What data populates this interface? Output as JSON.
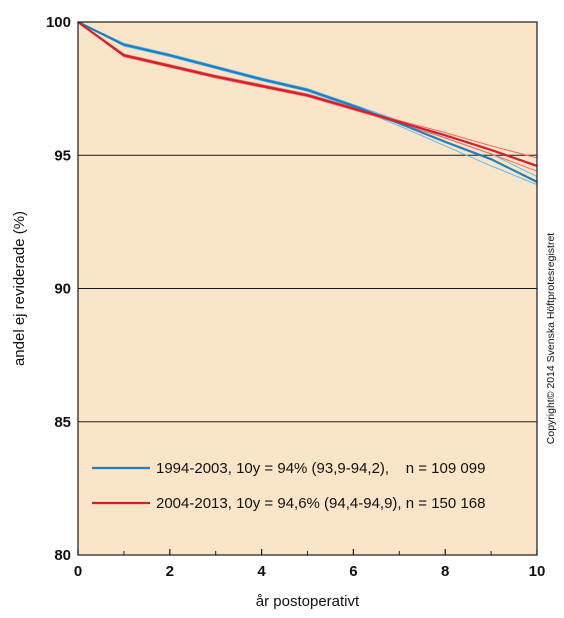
{
  "chart_data": {
    "type": "line",
    "title": "",
    "xlabel": "år postoperativt",
    "ylabel": "andel ej reviderade (%)",
    "xlim": [
      0,
      10
    ],
    "ylim": [
      80,
      100
    ],
    "x_ticks": [
      "0",
      "2",
      "4",
      "6",
      "8",
      "10"
    ],
    "y_ticks": [
      "100",
      "95",
      "90",
      "85",
      "80"
    ],
    "grid": "horizontal",
    "background_color": "#fbe5c8",
    "legend_position": "bottom-left",
    "series": [
      {
        "name": "1994-2003, 10y = 94% (93,9-94,2),    n = 109 099",
        "color": "#1f7fc0",
        "ci_color": "#5fb8e8",
        "x": [
          0,
          1,
          2,
          3,
          4,
          5,
          6,
          7,
          8,
          9,
          10
        ],
        "y": [
          100,
          99.15,
          98.75,
          98.3,
          97.85,
          97.45,
          96.85,
          96.2,
          95.5,
          94.85,
          94.0
        ],
        "ci_low": [
          100,
          99.1,
          98.7,
          98.25,
          97.8,
          97.4,
          96.8,
          96.1,
          95.35,
          94.6,
          93.9
        ],
        "ci_high": [
          100,
          99.2,
          98.8,
          98.35,
          97.9,
          97.5,
          96.9,
          96.3,
          95.65,
          95.05,
          94.2
        ]
      },
      {
        "name": "2004-2013, 10y = 94,6% (94,4-94,9), n = 150 168",
        "color": "#d81e28",
        "ci_color": "#ee6a6a",
        "x": [
          0,
          1,
          2,
          3,
          4,
          5,
          6,
          7,
          8,
          9,
          10
        ],
        "y": [
          100,
          98.75,
          98.35,
          97.95,
          97.6,
          97.25,
          96.75,
          96.25,
          95.75,
          95.2,
          94.6
        ],
        "ci_low": [
          100,
          98.7,
          98.3,
          97.9,
          97.55,
          97.2,
          96.7,
          96.2,
          95.65,
          95.05,
          94.4
        ],
        "ci_high": [
          100,
          98.8,
          98.4,
          98.0,
          97.65,
          97.3,
          96.8,
          96.3,
          95.85,
          95.35,
          94.9
        ]
      }
    ],
    "annotation": "Copyright© 2014 Svenska Höftprotesregistret"
  }
}
